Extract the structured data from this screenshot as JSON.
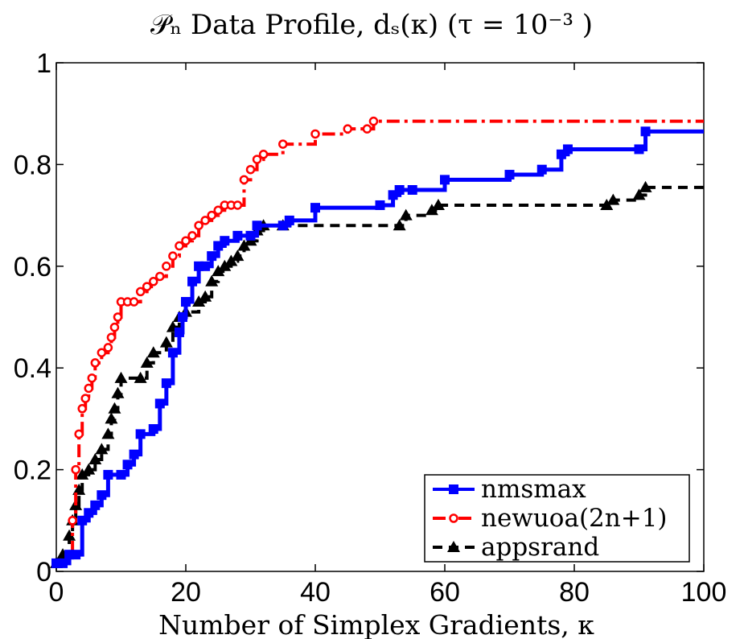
{
  "chart_data": {
    "type": "line",
    "title": "𝒫ₙ Data Profile, dₛ(κ) (τ = 10⁻³ )",
    "xlabel": "Number of Simplex Gradients, κ",
    "ylabel": "",
    "xlim": [
      0,
      100
    ],
    "ylim": [
      0,
      1
    ],
    "xticks": [
      "0",
      "20",
      "40",
      "60",
      "80",
      "100"
    ],
    "yticks": [
      "0",
      "0.2",
      "0.4",
      "0.6",
      "0.8",
      "1"
    ],
    "grid": false,
    "legend_position": "bottom-right",
    "series": [
      {
        "name": "nmsmax",
        "color": "#0000ff",
        "style": "solid",
        "marker": "square",
        "x": [
          0,
          1,
          2,
          3,
          4,
          5,
          6,
          7,
          8,
          10,
          11,
          12,
          13,
          15,
          16,
          17,
          18,
          19,
          19.5,
          20,
          21,
          22,
          23,
          24,
          25,
          26,
          28,
          30,
          31,
          35,
          36,
          40,
          50,
          52,
          53,
          55,
          60,
          70,
          75,
          78,
          79,
          90,
          91,
          100
        ],
        "y": [
          0.016,
          0.016,
          0.033,
          0.033,
          0.1,
          0.115,
          0.13,
          0.15,
          0.19,
          0.19,
          0.21,
          0.23,
          0.27,
          0.28,
          0.33,
          0.37,
          0.43,
          0.47,
          0.5,
          0.53,
          0.57,
          0.6,
          0.6,
          0.62,
          0.64,
          0.65,
          0.66,
          0.66,
          0.68,
          0.68,
          0.69,
          0.715,
          0.72,
          0.74,
          0.75,
          0.75,
          0.77,
          0.78,
          0.79,
          0.82,
          0.83,
          0.83,
          0.865,
          0.865
        ]
      },
      {
        "name": "newuoa(2n+1)",
        "color": "#ff0000",
        "style": "dashdot",
        "marker": "circle",
        "x": [
          0,
          2,
          2.5,
          3,
          3.5,
          4,
          4.5,
          5,
          5.5,
          6,
          7,
          8,
          8.5,
          9,
          9.5,
          10,
          11,
          12,
          13,
          14,
          15,
          16,
          17,
          18,
          19,
          20,
          21,
          22,
          23,
          24,
          25,
          26,
          27,
          28,
          29,
          30,
          31,
          32,
          35,
          40,
          45,
          48,
          49,
          100
        ],
        "y": [
          0.016,
          0.033,
          0.1,
          0.2,
          0.27,
          0.32,
          0.34,
          0.36,
          0.38,
          0.41,
          0.43,
          0.44,
          0.46,
          0.48,
          0.5,
          0.53,
          0.53,
          0.53,
          0.55,
          0.56,
          0.57,
          0.58,
          0.6,
          0.62,
          0.64,
          0.65,
          0.66,
          0.68,
          0.69,
          0.7,
          0.71,
          0.72,
          0.72,
          0.72,
          0.77,
          0.79,
          0.81,
          0.82,
          0.84,
          0.86,
          0.87,
          0.87,
          0.885,
          0.885
        ]
      },
      {
        "name": "appsrand",
        "color": "#000000",
        "style": "dashed",
        "marker": "triangle",
        "x": [
          0,
          1,
          2,
          2.5,
          3,
          3.5,
          4,
          5,
          6,
          7,
          8,
          8.5,
          9,
          9.5,
          10,
          13,
          14,
          15,
          17,
          18,
          19,
          20,
          22,
          23,
          24,
          25,
          26,
          27,
          28,
          29,
          30,
          31,
          32,
          35,
          53,
          54,
          58,
          59,
          85,
          86,
          90,
          91,
          100
        ],
        "y": [
          0.016,
          0.033,
          0.07,
          0.1,
          0.13,
          0.16,
          0.19,
          0.2,
          0.22,
          0.24,
          0.27,
          0.3,
          0.32,
          0.35,
          0.38,
          0.38,
          0.41,
          0.43,
          0.45,
          0.48,
          0.5,
          0.51,
          0.53,
          0.54,
          0.57,
          0.59,
          0.6,
          0.61,
          0.62,
          0.64,
          0.65,
          0.67,
          0.68,
          0.68,
          0.68,
          0.7,
          0.71,
          0.72,
          0.72,
          0.73,
          0.74,
          0.755,
          0.755
        ]
      }
    ]
  }
}
